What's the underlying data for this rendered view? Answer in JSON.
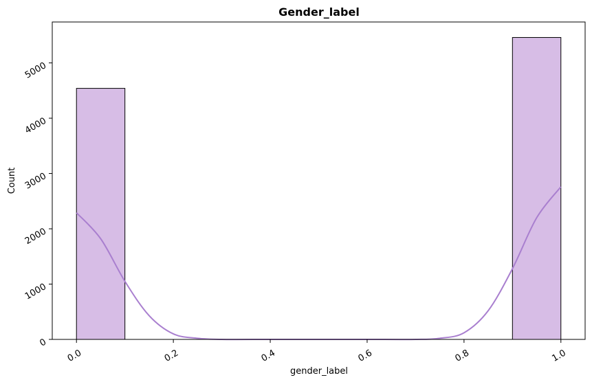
{
  "chart_data": {
    "type": "bar",
    "subtype": "histogram-with-kde",
    "title": "Gender_label",
    "xlabel": "gender_label",
    "ylabel": "Count",
    "xlim": [
      -0.05,
      1.05
    ],
    "ylim": [
      0,
      5740
    ],
    "grid": false,
    "legend": "none",
    "bar_color": "#d7bde6",
    "edge_color": "#000000",
    "kde_color": "#a97fcf",
    "x_ticks": [
      {
        "value": 0.0,
        "label": "0.0"
      },
      {
        "value": 0.2,
        "label": "0.2"
      },
      {
        "value": 0.4,
        "label": "0.4"
      },
      {
        "value": 0.6,
        "label": "0.6"
      },
      {
        "value": 0.8,
        "label": "0.8"
      },
      {
        "value": 1.0,
        "label": "1.0"
      }
    ],
    "y_ticks": [
      {
        "value": 0,
        "label": "0"
      },
      {
        "value": 1000,
        "label": "1000"
      },
      {
        "value": 2000,
        "label": "2000"
      },
      {
        "value": 3000,
        "label": "3000"
      },
      {
        "value": 4000,
        "label": "4000"
      },
      {
        "value": 5000,
        "label": "5000"
      }
    ],
    "bins": [
      {
        "x0": 0.0,
        "x1": 0.1,
        "count": 4540
      },
      {
        "x0": 0.1,
        "x1": 0.2,
        "count": 0
      },
      {
        "x0": 0.2,
        "x1": 0.3,
        "count": 0
      },
      {
        "x0": 0.3,
        "x1": 0.4,
        "count": 0
      },
      {
        "x0": 0.4,
        "x1": 0.5,
        "count": 0
      },
      {
        "x0": 0.5,
        "x1": 0.6,
        "count": 0
      },
      {
        "x0": 0.6,
        "x1": 0.7,
        "count": 0
      },
      {
        "x0": 0.7,
        "x1": 0.8,
        "count": 0
      },
      {
        "x0": 0.8,
        "x1": 0.9,
        "count": 0
      },
      {
        "x0": 0.9,
        "x1": 1.0,
        "count": 5460
      }
    ],
    "kde": {
      "x": [
        0.0,
        0.05,
        0.1,
        0.15,
        0.2,
        0.25,
        0.3,
        0.4,
        0.5,
        0.6,
        0.7,
        0.75,
        0.8,
        0.85,
        0.9,
        0.95,
        1.0
      ],
      "y": [
        2290,
        1820,
        1050,
        430,
        100,
        20,
        0,
        0,
        0,
        0,
        0,
        20,
        120,
        520,
        1280,
        2200,
        2760
      ]
    }
  }
}
